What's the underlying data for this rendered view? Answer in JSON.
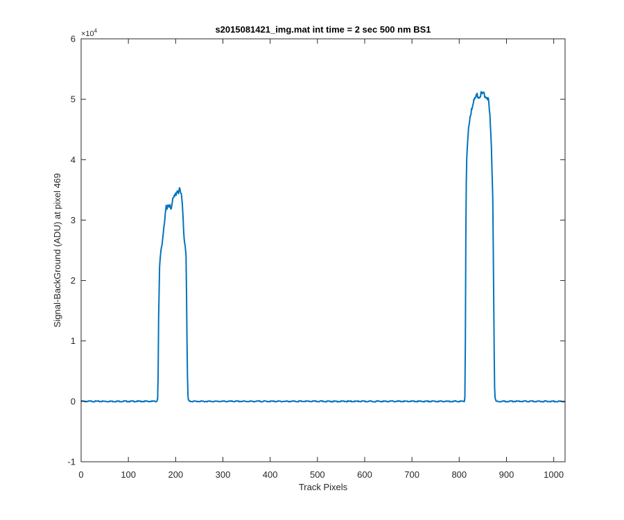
{
  "chart_data": {
    "type": "line",
    "title": "s2015081421_img.mat int time = 2 sec  500 nm BS1",
    "xlabel": "Track Pixels",
    "ylabel": "Signal-BackGround (ADU) at pixel 469",
    "xlim": [
      0,
      1024
    ],
    "ylim": [
      -10000,
      60000
    ],
    "x_ticks": [
      0,
      100,
      200,
      300,
      400,
      500,
      600,
      700,
      800,
      900,
      1000
    ],
    "y_ticks": [
      -10000,
      0,
      10000,
      20000,
      30000,
      40000,
      50000,
      60000
    ],
    "y_tick_labels": [
      "-1",
      "0",
      "1",
      "2",
      "3",
      "4",
      "5",
      "6"
    ],
    "y_exponent": {
      "base": "×10",
      "power": "4"
    },
    "grid": false,
    "series": [
      {
        "color": "#0072BD",
        "x": [
          0,
          100,
          160,
          162,
          163,
          164,
          166,
          168,
          170,
          172,
          175,
          178,
          180,
          182,
          184,
          186,
          188,
          190,
          193,
          196,
          200,
          203,
          206,
          209,
          212,
          214,
          216,
          218,
          220,
          222,
          223,
          224,
          225,
          226,
          227,
          229,
          240,
          400,
          600,
          800,
          811,
          812,
          813,
          814,
          815,
          816,
          817,
          818,
          820,
          823,
          826,
          830,
          834,
          838,
          842,
          846,
          850,
          854,
          858,
          862,
          865,
          867,
          869,
          871,
          872,
          873,
          874,
          875,
          876,
          878,
          880,
          900,
          1024
        ],
        "y": [
          0,
          0,
          0,
          500,
          5000,
          14000,
          22000,
          24000,
          25500,
          26500,
          29000,
          31000,
          32000,
          31500,
          32500,
          32200,
          32800,
          32000,
          33000,
          33600,
          34200,
          35000,
          34700,
          35000,
          34000,
          32500,
          30000,
          27000,
          26000,
          24500,
          18000,
          10000,
          4000,
          1000,
          200,
          0,
          0,
          0,
          0,
          0,
          0,
          800,
          10000,
          28000,
          36000,
          40500,
          41500,
          43000,
          45000,
          47000,
          48500,
          49500,
          50200,
          50600,
          50500,
          50800,
          50900,
          50700,
          50500,
          49800,
          47000,
          44000,
          40000,
          34000,
          26000,
          17000,
          8000,
          2500,
          500,
          0,
          0,
          0,
          0
        ]
      }
    ]
  }
}
